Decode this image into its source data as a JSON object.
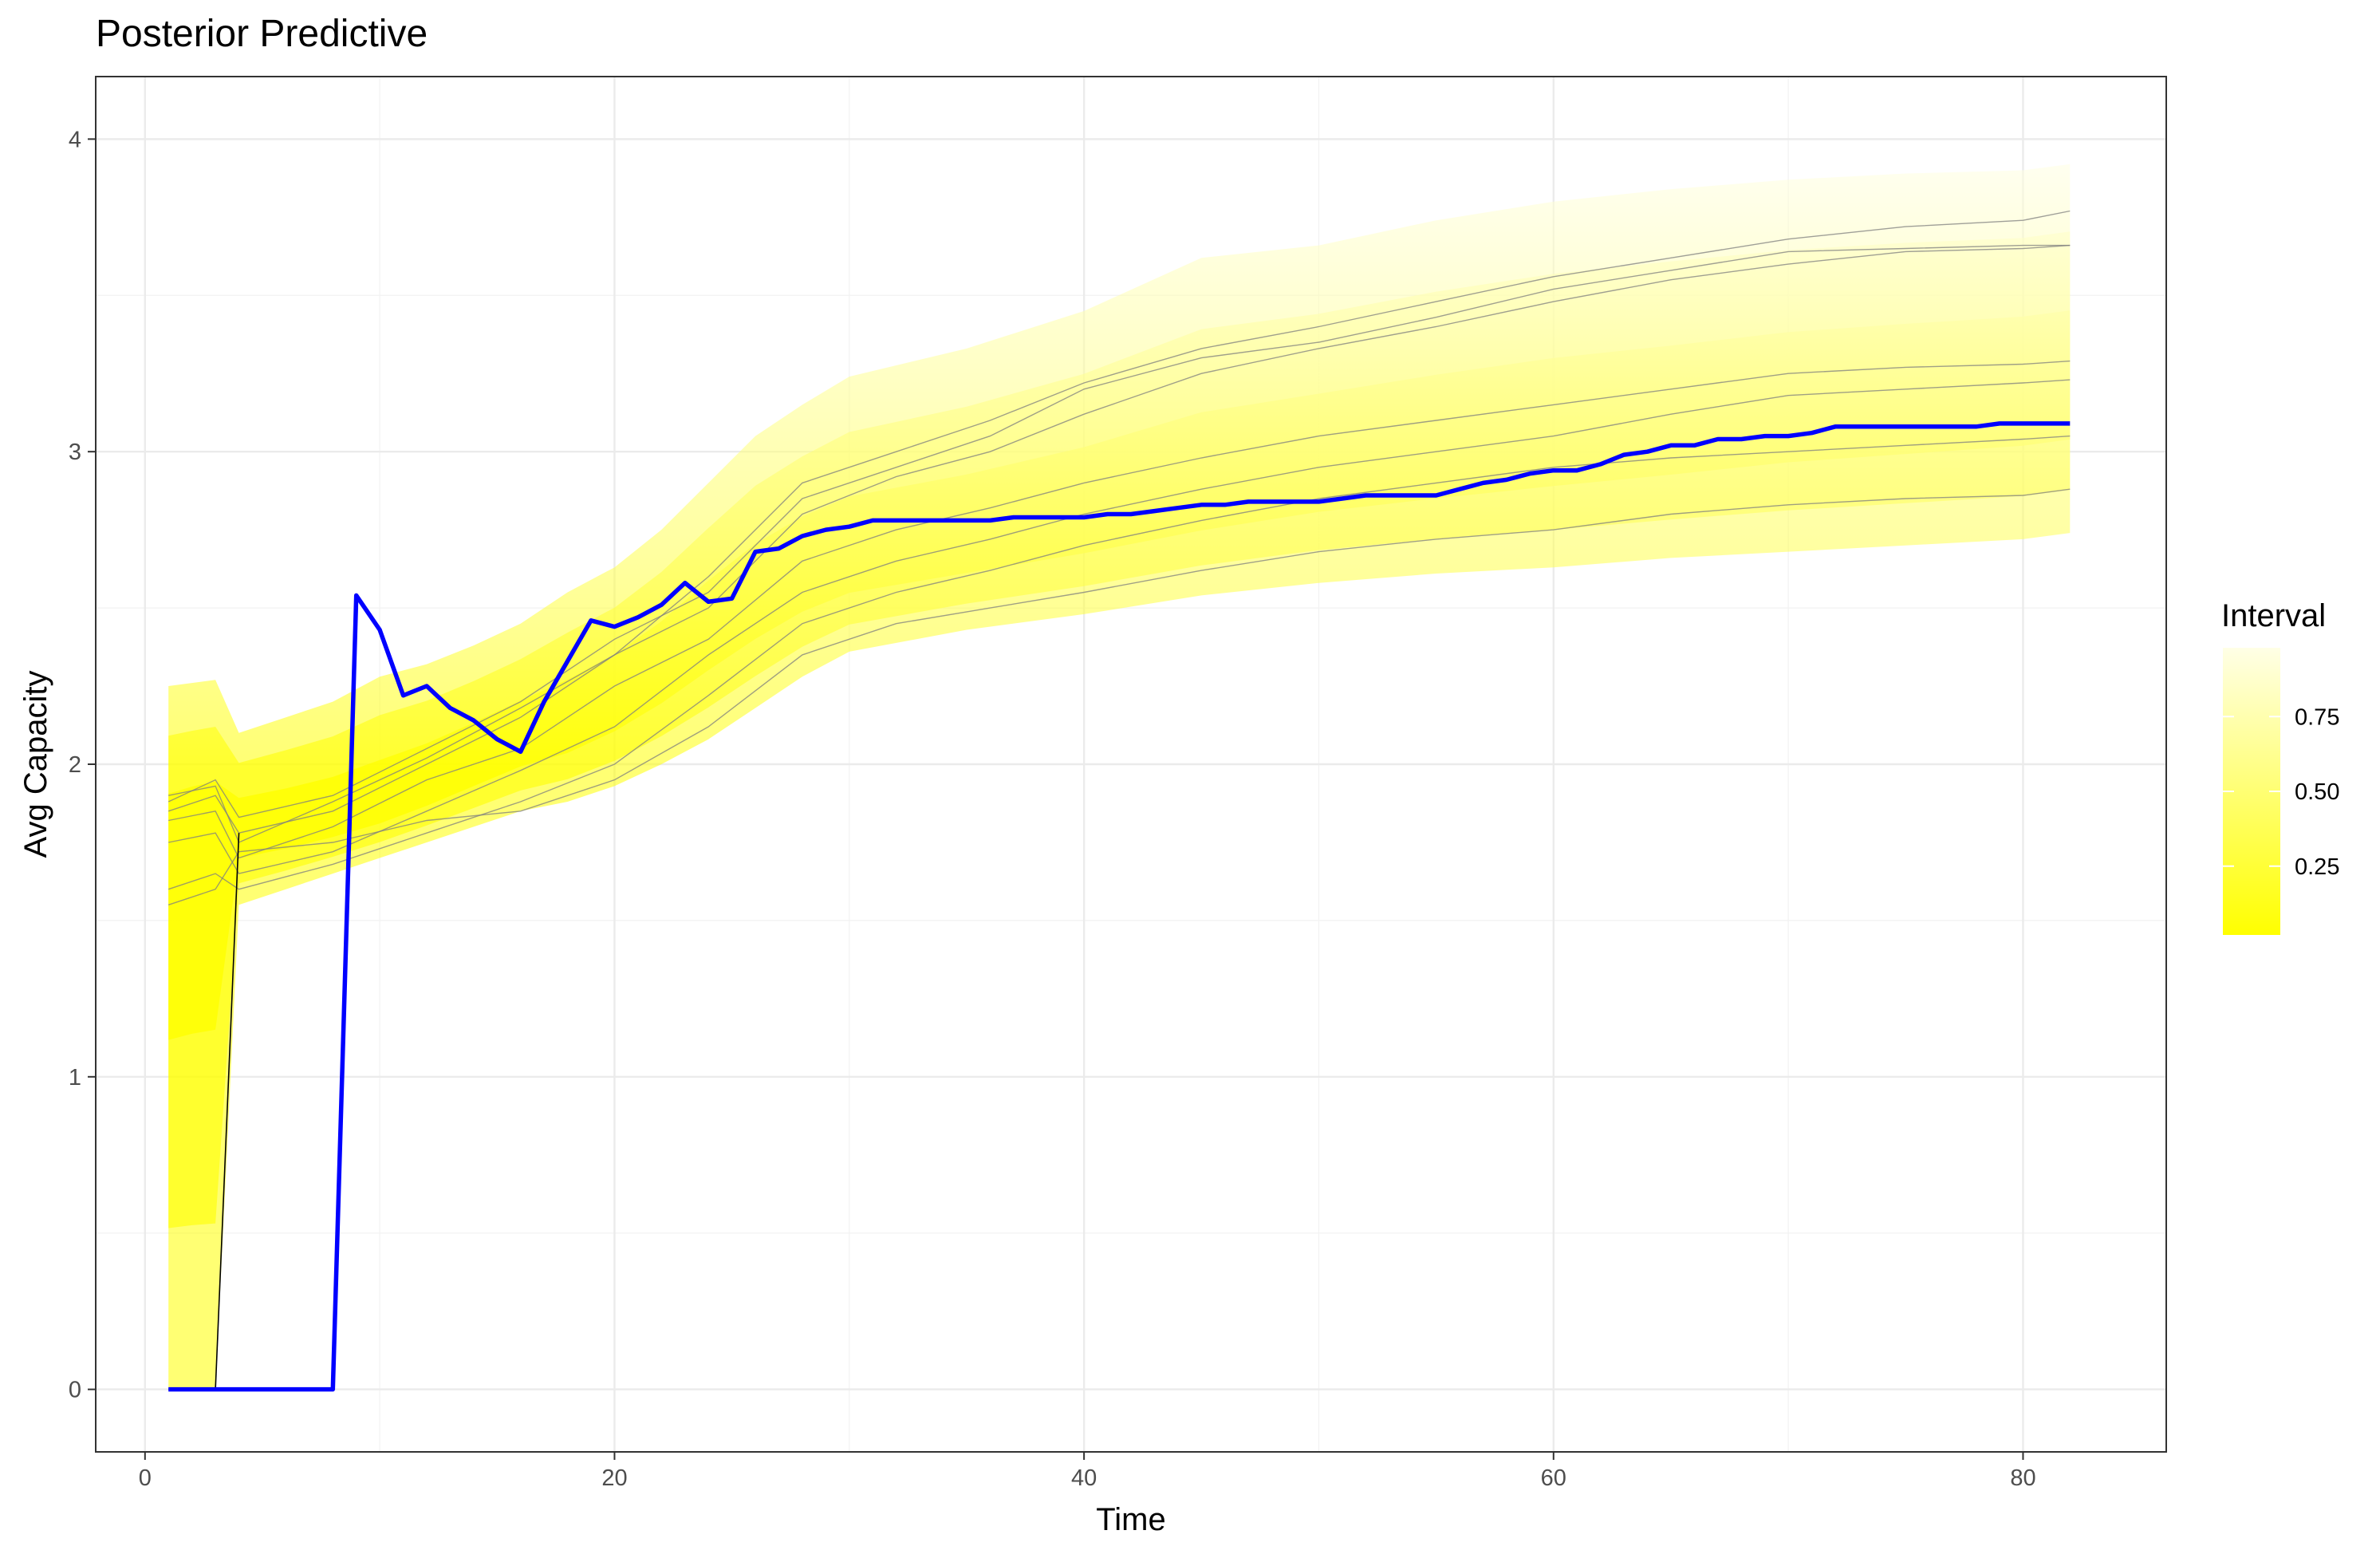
{
  "chart_data": {
    "type": "line",
    "title": "Posterior Predictive",
    "xlabel": "Time",
    "ylabel": "Avg Capacity",
    "xlim": [
      -2.1,
      86.1
    ],
    "ylim": [
      -0.2,
      4.2
    ],
    "x_ticks": [
      0,
      20,
      40,
      60,
      80
    ],
    "y_ticks": [
      0,
      1,
      2,
      3,
      4
    ],
    "x_tick_labels": [
      "0",
      "20",
      "40",
      "60",
      "80"
    ],
    "y_tick_labels": [
      "0",
      "1",
      "2",
      "3",
      "4"
    ],
    "grid": true,
    "legend": {
      "title": "Interval",
      "position": "right",
      "type": "colorbar",
      "range": [
        0.02,
        0.98
      ],
      "tick_values": [
        0.25,
        0.5,
        0.75
      ],
      "tick_labels": [
        "0.25",
        "0.50",
        "0.75"
      ],
      "color_low": "#ffff00",
      "color_high": "#ffffe6"
    },
    "colors": {
      "observed": "#0000ff",
      "draws": "#7f7f7f",
      "band": "#ffff00"
    },
    "band_x": [
      1,
      2,
      3,
      4,
      6,
      8,
      10,
      12,
      14,
      16,
      18,
      20,
      22,
      24,
      26,
      28,
      30,
      35,
      40,
      45,
      50,
      55,
      60,
      65,
      70,
      75,
      80,
      82
    ],
    "band_lower": [
      0,
      0,
      0,
      1.55,
      1.6,
      1.65,
      1.7,
      1.75,
      1.8,
      1.85,
      1.88,
      1.93,
      2.0,
      2.08,
      2.18,
      2.28,
      2.36,
      2.43,
      2.48,
      2.54,
      2.58,
      2.61,
      2.63,
      2.66,
      2.68,
      2.7,
      2.72,
      2.74
    ],
    "band_median": [
      1.72,
      1.75,
      1.77,
      1.78,
      1.8,
      1.83,
      1.87,
      1.93,
      2.0,
      2.07,
      2.12,
      2.2,
      2.3,
      2.42,
      2.52,
      2.6,
      2.65,
      2.71,
      2.78,
      2.86,
      2.93,
      2.98,
      3.03,
      3.07,
      3.12,
      3.15,
      3.18,
      3.2
    ],
    "band_upper": [
      2.25,
      2.26,
      2.27,
      2.1,
      2.15,
      2.2,
      2.28,
      2.32,
      2.38,
      2.45,
      2.55,
      2.63,
      2.75,
      2.9,
      3.05,
      3.15,
      3.24,
      3.33,
      3.45,
      3.62,
      3.66,
      3.74,
      3.8,
      3.84,
      3.87,
      3.89,
      3.9,
      3.92
    ],
    "series": [
      {
        "x": [
          1,
          2,
          3,
          4,
          5,
          6,
          7,
          8,
          9,
          10,
          11,
          12,
          13,
          14,
          15,
          16,
          17,
          18,
          19,
          20,
          21,
          22,
          23,
          24,
          25,
          26,
          27,
          28,
          29,
          30,
          31,
          32,
          33,
          34,
          35,
          36,
          37,
          38,
          39,
          40,
          41,
          42,
          43,
          44,
          45,
          46,
          47,
          48,
          49,
          50,
          51,
          52,
          53,
          54,
          55,
          56,
          57,
          58,
          59,
          60,
          61,
          62,
          63,
          64,
          65,
          66,
          67,
          68,
          69,
          70,
          71,
          72,
          73,
          74,
          75,
          76,
          77,
          78,
          79,
          80,
          81,
          82
        ],
        "values": [
          0,
          0,
          0,
          0,
          0,
          0,
          0,
          0,
          2.54,
          2.43,
          2.22,
          2.25,
          2.18,
          2.14,
          2.08,
          2.04,
          2.2,
          2.33,
          2.46,
          2.44,
          2.47,
          2.51,
          2.58,
          2.52,
          2.53,
          2.68,
          2.69,
          2.73,
          2.75,
          2.76,
          2.78,
          2.78,
          2.78,
          2.78,
          2.78,
          2.78,
          2.79,
          2.79,
          2.79,
          2.79,
          2.8,
          2.8,
          2.81,
          2.82,
          2.83,
          2.83,
          2.84,
          2.84,
          2.84,
          2.84,
          2.85,
          2.86,
          2.86,
          2.86,
          2.86,
          2.88,
          2.9,
          2.91,
          2.93,
          2.94,
          2.94,
          2.96,
          2.99,
          3.0,
          3.02,
          3.02,
          3.04,
          3.04,
          3.05,
          3.05,
          3.06,
          3.08,
          3.08,
          3.08,
          3.08,
          3.08,
          3.08,
          3.08,
          3.09,
          3.09,
          3.09,
          3.09
        ]
      },
      {
        "x": [
          1,
          3,
          4,
          8,
          12,
          16,
          20,
          24,
          28,
          32,
          36,
          40,
          45,
          50,
          55,
          60,
          65,
          70,
          75,
          80,
          82
        ],
        "values": [
          1.85,
          1.9,
          1.78,
          1.85,
          2.0,
          2.15,
          2.35,
          2.6,
          2.9,
          3.0,
          3.1,
          3.22,
          3.33,
          3.4,
          3.48,
          3.56,
          3.62,
          3.68,
          3.72,
          3.74,
          3.77
        ]
      },
      {
        "x": [
          1,
          3,
          4,
          8,
          12,
          16,
          20,
          24,
          28,
          32,
          36,
          40,
          45,
          50,
          55,
          60,
          65,
          70,
          75,
          80,
          82
        ],
        "values": [
          1.88,
          1.95,
          1.83,
          1.9,
          2.05,
          2.2,
          2.4,
          2.55,
          2.85,
          2.95,
          3.05,
          3.2,
          3.3,
          3.35,
          3.43,
          3.52,
          3.58,
          3.64,
          3.65,
          3.66,
          3.66
        ]
      },
      {
        "x": [
          1,
          3,
          4,
          8,
          12,
          16,
          20,
          24,
          28,
          32,
          36,
          40,
          45,
          50,
          55,
          60,
          65,
          70,
          75,
          80,
          82
        ],
        "values": [
          1.9,
          1.93,
          1.75,
          1.88,
          2.02,
          2.18,
          2.35,
          2.5,
          2.8,
          2.92,
          3.0,
          3.12,
          3.25,
          3.33,
          3.4,
          3.48,
          3.55,
          3.6,
          3.64,
          3.65,
          3.66
        ]
      },
      {
        "x": [
          1,
          3,
          4,
          8,
          12,
          16,
          20,
          24,
          28,
          32,
          36,
          40,
          45,
          50,
          55,
          60,
          65,
          70,
          75,
          80,
          82
        ],
        "values": [
          1.82,
          1.85,
          1.7,
          1.8,
          1.95,
          2.05,
          2.25,
          2.4,
          2.65,
          2.75,
          2.82,
          2.9,
          2.98,
          3.05,
          3.1,
          3.15,
          3.2,
          3.25,
          3.27,
          3.28,
          3.29
        ]
      },
      {
        "x": [
          1,
          3,
          4,
          8,
          12,
          16,
          20,
          24,
          28,
          32,
          36,
          40,
          45,
          50,
          55,
          60,
          65,
          70,
          75,
          80,
          82
        ],
        "values": [
          1.75,
          1.78,
          1.65,
          1.72,
          1.85,
          1.98,
          2.12,
          2.35,
          2.55,
          2.65,
          2.72,
          2.8,
          2.88,
          2.95,
          3.0,
          3.05,
          3.12,
          3.18,
          3.2,
          3.22,
          3.23
        ]
      },
      {
        "x": [
          1,
          3,
          4,
          8,
          12,
          16,
          20,
          24,
          28,
          32,
          36,
          40,
          45,
          50,
          55,
          60,
          65,
          70,
          75,
          80,
          82
        ],
        "values": [
          1.6,
          1.65,
          1.6,
          1.68,
          1.78,
          1.88,
          2.0,
          2.22,
          2.45,
          2.55,
          2.62,
          2.7,
          2.78,
          2.85,
          2.9,
          2.95,
          2.98,
          3.0,
          3.02,
          3.04,
          3.05
        ]
      },
      {
        "x": [
          1,
          3,
          4,
          8,
          12,
          16,
          20,
          24,
          28,
          32,
          36,
          40,
          45,
          50,
          55,
          60,
          65,
          70,
          75,
          80,
          82
        ],
        "values": [
          1.55,
          1.6,
          1.72,
          1.75,
          1.82,
          1.85,
          1.95,
          2.12,
          2.35,
          2.45,
          2.5,
          2.55,
          2.62,
          2.68,
          2.72,
          2.75,
          2.8,
          2.83,
          2.85,
          2.86,
          2.88
        ]
      }
    ]
  }
}
